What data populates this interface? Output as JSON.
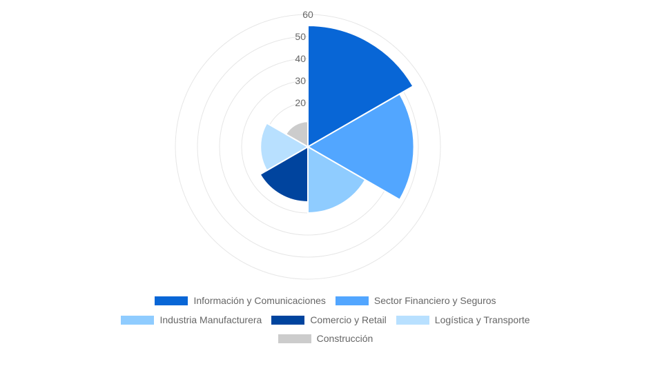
{
  "chart_data": {
    "type": "polarArea",
    "title": "",
    "categories": [
      "Información y Comunicaciones",
      "Sector Financiero y Seguros",
      "Industria Manufacturera",
      "Comercio y Retail",
      "Logística y Transporte",
      "Construcción"
    ],
    "values": [
      55,
      48,
      30,
      25,
      21.5,
      11.5
    ],
    "colors": [
      "#0866D6",
      "#52A6FF",
      "#8FCCFF",
      "#00449E",
      "#B8E0FF",
      "#CCCCCC"
    ],
    "radial_axis": {
      "min": 0,
      "max": 60,
      "ticks": [
        20,
        30,
        40,
        50,
        60
      ],
      "grid": true
    },
    "legend_position": "bottom"
  },
  "legend": {
    "rows": [
      [
        {
          "label": "Información y Comunicaciones",
          "color": "#0866D6"
        },
        {
          "label": "Sector Financiero y Seguros",
          "color": "#52A6FF"
        }
      ],
      [
        {
          "label": "Industria Manufacturera",
          "color": "#8FCCFF"
        },
        {
          "label": "Comercio y Retail",
          "color": "#00449E"
        },
        {
          "label": "Logística y Transporte",
          "color": "#B8E0FF"
        }
      ],
      [
        {
          "label": "Construcción",
          "color": "#CCCCCC"
        }
      ]
    ]
  }
}
